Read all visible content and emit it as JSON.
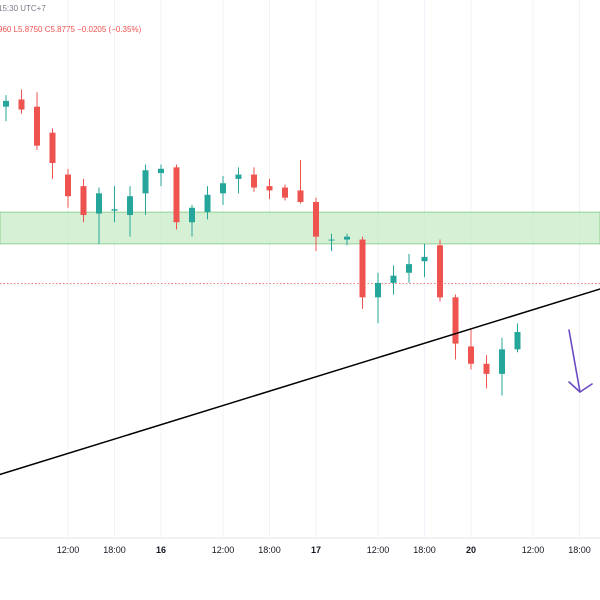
{
  "header": {
    "timestamp": "15:30 UTC+7",
    "ohlc_text": "960  L5.8750  C5.8775  −0.0205 (−0.35%)"
  },
  "colors": {
    "up": "#26a69a",
    "down": "#ef5350",
    "zone_fill": "#c8ebc8",
    "zone_stroke": "#7cc87c",
    "trendline": "#000000",
    "arrow": "#6a4bc4",
    "price_line": "#ef5350",
    "header_gray": "#787b86",
    "header_red": "#ef5350"
  },
  "chart_data": {
    "type": "candlestick",
    "x_axis_ticks": [
      {
        "label": "12:00",
        "bold": false,
        "x_index": 4
      },
      {
        "label": "18:00",
        "bold": false,
        "x_index": 7
      },
      {
        "label": "16",
        "bold": true,
        "x_index": 10
      },
      {
        "label": "12:00",
        "bold": false,
        "x_index": 14
      },
      {
        "label": "18:00",
        "bold": false,
        "x_index": 17
      },
      {
        "label": "17",
        "bold": true,
        "x_index": 20
      },
      {
        "label": "12:00",
        "bold": false,
        "x_index": 24
      },
      {
        "label": "18:00",
        "bold": false,
        "x_index": 27
      },
      {
        "label": "20",
        "bold": true,
        "x_index": 30
      },
      {
        "label": "12:00",
        "bold": false,
        "x_index": 34
      },
      {
        "label": "18:00",
        "bold": false,
        "x_index": 37
      }
    ],
    "y_range": [
      5.7,
      6.06
    ],
    "last_price": 5.8775,
    "zone": [
      5.905,
      5.927
    ],
    "trendline": [
      {
        "x_index": -0.5,
        "price": 5.745
      },
      {
        "x_index": 40.5,
        "price": 5.881
      }
    ],
    "candles": [
      {
        "o": 6.0,
        "h": 6.008,
        "l": 5.99,
        "c": 6.004
      },
      {
        "o": 6.005,
        "h": 6.012,
        "l": 5.995,
        "c": 5.998
      },
      {
        "o": 6.0,
        "h": 6.01,
        "l": 5.97,
        "c": 5.973
      },
      {
        "o": 5.982,
        "h": 5.985,
        "l": 5.95,
        "c": 5.961
      },
      {
        "o": 5.953,
        "h": 5.957,
        "l": 5.93,
        "c": 5.938
      },
      {
        "o": 5.945,
        "h": 5.95,
        "l": 5.92,
        "c": 5.925
      },
      {
        "o": 5.926,
        "h": 5.944,
        "l": 5.905,
        "c": 5.94
      },
      {
        "o": 5.928,
        "h": 5.945,
        "l": 5.92,
        "c": 5.929
      },
      {
        "o": 5.925,
        "h": 5.945,
        "l": 5.91,
        "c": 5.938
      },
      {
        "o": 5.94,
        "h": 5.96,
        "l": 5.925,
        "c": 5.956
      },
      {
        "o": 5.954,
        "h": 5.96,
        "l": 5.945,
        "c": 5.957
      },
      {
        "o": 5.958,
        "h": 5.96,
        "l": 5.915,
        "c": 5.92
      },
      {
        "o": 5.92,
        "h": 5.932,
        "l": 5.91,
        "c": 5.93
      },
      {
        "o": 5.927,
        "h": 5.945,
        "l": 5.922,
        "c": 5.939
      },
      {
        "o": 5.94,
        "h": 5.952,
        "l": 5.932,
        "c": 5.947
      },
      {
        "o": 5.95,
        "h": 5.958,
        "l": 5.94,
        "c": 5.953
      },
      {
        "o": 5.953,
        "h": 5.958,
        "l": 5.941,
        "c": 5.944
      },
      {
        "o": 5.945,
        "h": 5.95,
        "l": 5.936,
        "c": 5.942
      },
      {
        "o": 5.944,
        "h": 5.946,
        "l": 5.935,
        "c": 5.937
      },
      {
        "o": 5.942,
        "h": 5.963,
        "l": 5.933,
        "c": 5.934
      },
      {
        "o": 5.934,
        "h": 5.937,
        "l": 5.9,
        "c": 5.91
      },
      {
        "o": 5.908,
        "h": 5.912,
        "l": 5.9,
        "c": 5.908
      },
      {
        "o": 5.908,
        "h": 5.912,
        "l": 5.904,
        "c": 5.91
      },
      {
        "o": 5.908,
        "h": 5.91,
        "l": 5.86,
        "c": 5.868
      },
      {
        "o": 5.868,
        "h": 5.885,
        "l": 5.85,
        "c": 5.878
      },
      {
        "o": 5.878,
        "h": 5.89,
        "l": 5.87,
        "c": 5.883
      },
      {
        "o": 5.885,
        "h": 5.898,
        "l": 5.878,
        "c": 5.891
      },
      {
        "o": 5.893,
        "h": 5.905,
        "l": 5.882,
        "c": 5.896
      },
      {
        "o": 5.904,
        "h": 5.908,
        "l": 5.865,
        "c": 5.868
      },
      {
        "o": 5.868,
        "h": 5.87,
        "l": 5.825,
        "c": 5.836
      },
      {
        "o": 5.834,
        "h": 5.846,
        "l": 5.818,
        "c": 5.822
      },
      {
        "o": 5.822,
        "h": 5.828,
        "l": 5.805,
        "c": 5.815
      },
      {
        "o": 5.815,
        "h": 5.84,
        "l": 5.8,
        "c": 5.832
      },
      {
        "o": 5.832,
        "h": 5.85,
        "l": 5.83,
        "c": 5.844
      }
    ]
  }
}
